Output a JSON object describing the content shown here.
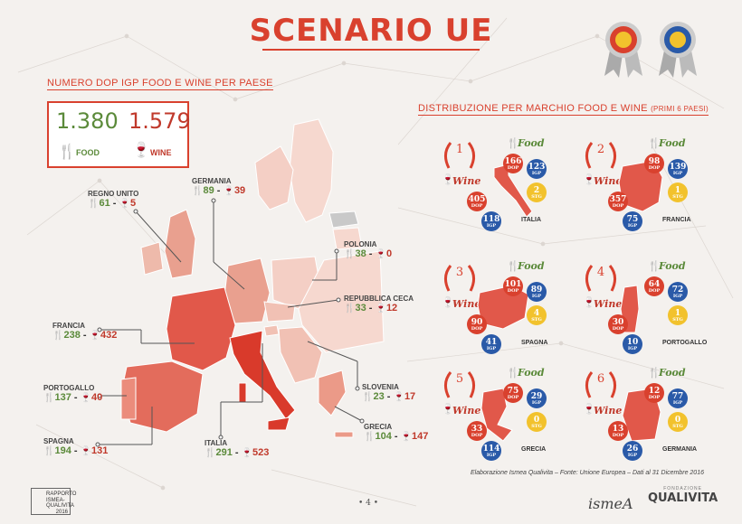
{
  "title": "SCENARIO UE",
  "left_section_title": "NUMERO DOP IGP FOOD E WINE PER PAESE",
  "right_section_title": "DISTRIBUZIONE PER MARCHIO FOOD E WINE",
  "right_section_sub": "(PRIMI 6 PAESI)",
  "totals": {
    "food_value": "1.380",
    "food_label": "FOOD",
    "wine_value": "1.579",
    "wine_label": "WINE"
  },
  "countries": [
    {
      "name": "REGNO UNITO",
      "food": "61",
      "wine": "5"
    },
    {
      "name": "GERMANIA",
      "food": "89",
      "wine": "39"
    },
    {
      "name": "POLONIA",
      "food": "38",
      "wine": "0"
    },
    {
      "name": "REPUBBLICA CECA",
      "food": "33",
      "wine": "12"
    },
    {
      "name": "FRANCIA",
      "food": "238",
      "wine": "432"
    },
    {
      "name": "PORTOGALLO",
      "food": "137",
      "wine": "40"
    },
    {
      "name": "SLOVENIA",
      "food": "23",
      "wine": "17"
    },
    {
      "name": "GRECIA",
      "food": "104",
      "wine": "147"
    },
    {
      "name": "SPAGNA",
      "food": "194",
      "wine": "131"
    },
    {
      "name": "ITALIA",
      "food": "291",
      "wine": "523"
    }
  ],
  "top6": [
    {
      "rank": "1",
      "name": "ITALIA",
      "food_dop": "166",
      "food_igp": "123",
      "food_stg": "2",
      "wine_dop": "405",
      "wine_igp": "118"
    },
    {
      "rank": "2",
      "name": "FRANCIA",
      "food_dop": "98",
      "food_igp": "139",
      "food_stg": "1",
      "wine_dop": "357",
      "wine_igp": "75"
    },
    {
      "rank": "3",
      "name": "SPAGNA",
      "food_dop": "101",
      "food_igp": "89",
      "food_stg": "4",
      "wine_dop": "90",
      "wine_igp": "41"
    },
    {
      "rank": "4",
      "name": "PORTOGALLO",
      "food_dop": "64",
      "food_igp": "72",
      "food_stg": "1",
      "wine_dop": "30",
      "wine_igp": "10"
    },
    {
      "rank": "5",
      "name": "GRECIA",
      "food_dop": "75",
      "food_igp": "29",
      "food_stg": "0",
      "wine_dop": "33",
      "wine_igp": "114"
    },
    {
      "rank": "6",
      "name": "GERMANIA",
      "food_dop": "12",
      "food_igp": "77",
      "food_stg": "0",
      "wine_dop": "13",
      "wine_igp": "26"
    }
  ],
  "badge_labels": {
    "dop": "DOP",
    "igp": "IGP",
    "stg": "STG"
  },
  "food_word": "Food",
  "wine_word": "Wine",
  "source": "Elaborazione Ismea Qualivita – Fonte: Unione Europea – Dati al 31 Dicembre 2016",
  "footer": {
    "report_line1": "RAPPORTO",
    "report_line2": "ISMEA-QUALIVITA",
    "report_year": "2016",
    "page": "• 4 •",
    "ismea": "ismeA",
    "qualivita_small": "FONDAZIONE",
    "qualivita": "QUALIVITA"
  },
  "colors": {
    "accent": "#d9412e",
    "food_green": "#5b8a3a",
    "dop_red": "#d9412e",
    "igp_blue": "#2a5aa8",
    "stg_gold": "#f2c22d"
  }
}
